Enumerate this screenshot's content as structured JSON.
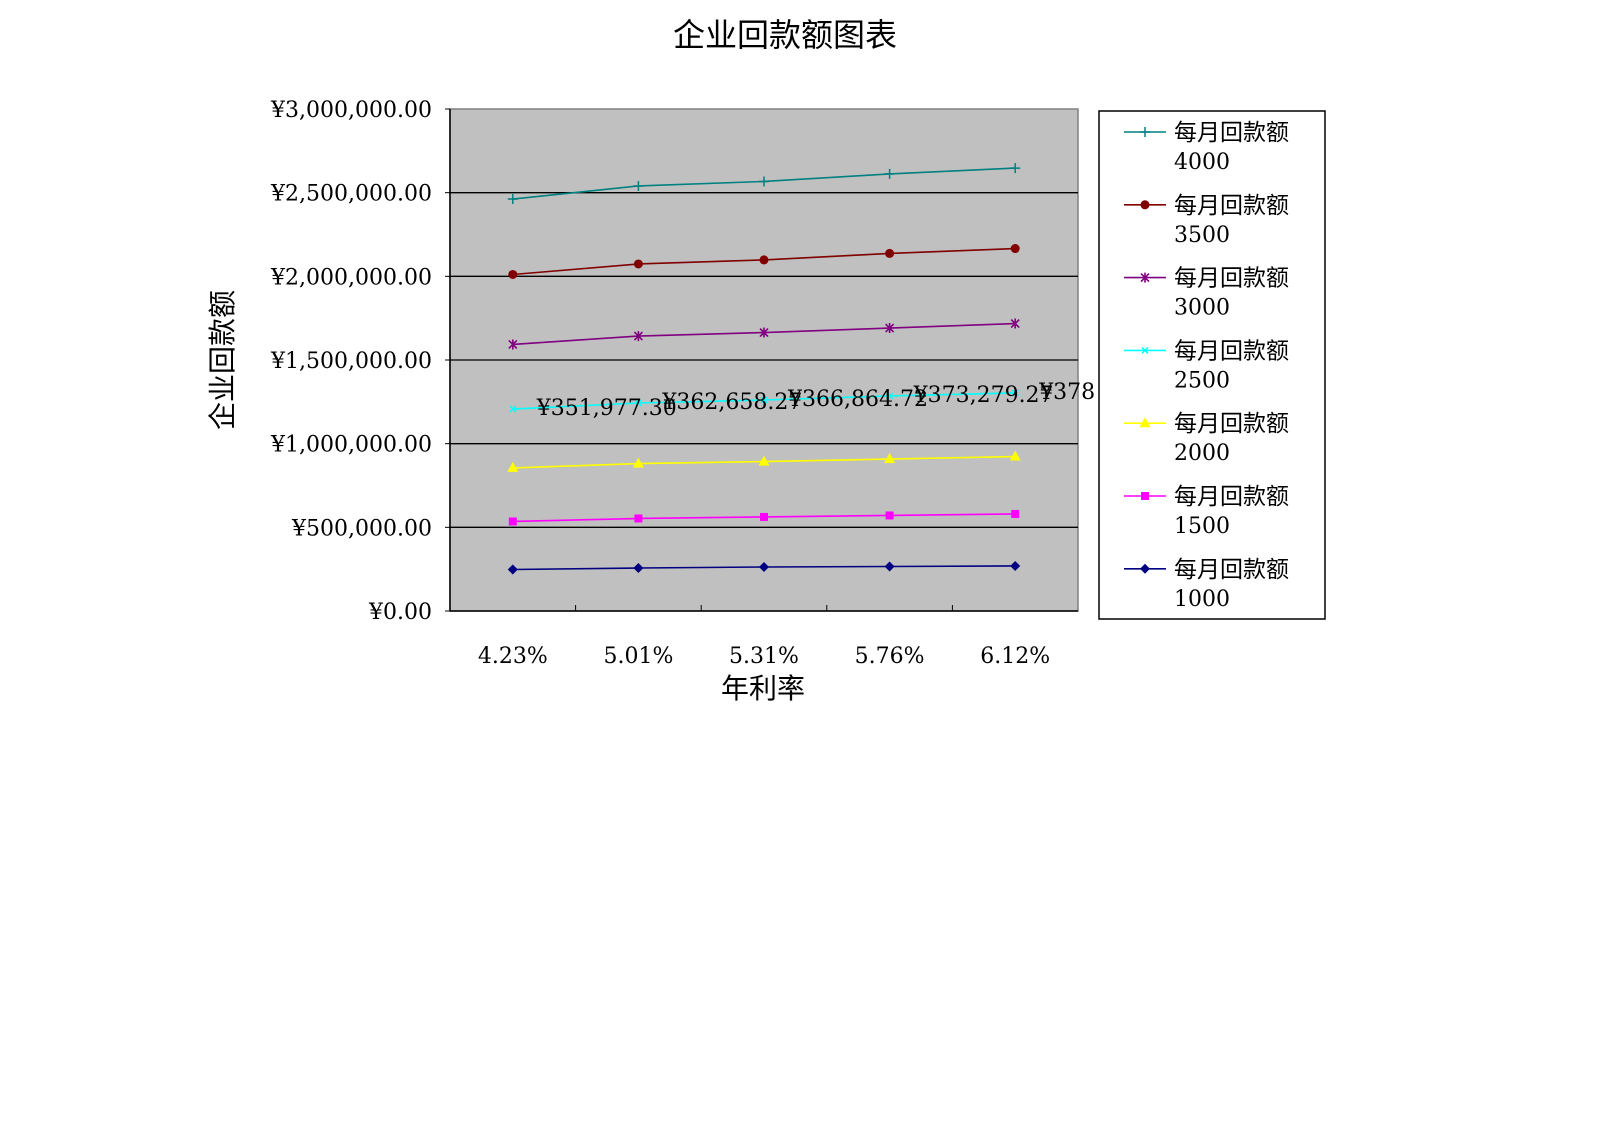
{
  "chart_data": {
    "type": "line",
    "title": "企业回款额图表",
    "xlabel": "年利率",
    "ylabel": "企业回款额",
    "categories": [
      "4.23%",
      "5.01%",
      "5.31%",
      "5.76%",
      "6.12%"
    ],
    "ylim": [
      0,
      3000000
    ],
    "yticks": [
      "¥0.00",
      "¥500,000.00",
      "¥1,000,000.00",
      "¥1,500,000.00",
      "¥2,000,000.00",
      "¥2,500,000.00",
      "¥3,000,000.00"
    ],
    "grid": true,
    "legend_position": "right",
    "plot_background": "#C0C0C0",
    "series": [
      {
        "name": "每月回款额 4000",
        "name_line1": "每月回款额",
        "name_line2": "4000",
        "color": "#008080",
        "marker": "plus",
        "values": [
          2462000,
          2540000,
          2567000,
          2612000,
          2647000
        ]
      },
      {
        "name": "每月回款额 3500",
        "name_line1": "每月回款额",
        "name_line2": "3500",
        "color": "#800000",
        "marker": "circle",
        "values": [
          2011000,
          2074000,
          2098000,
          2137000,
          2166000
        ]
      },
      {
        "name": "每月回款额 3000",
        "name_line1": "每月回款额",
        "name_line2": "3000",
        "color": "#800080",
        "marker": "asterisk",
        "values": [
          1593000,
          1643000,
          1664000,
          1691000,
          1718000
        ]
      },
      {
        "name": "每月回款额 2500",
        "name_line1": "每月回款额",
        "name_line2": "2500",
        "color": "#00FFFF",
        "marker": "x",
        "values": [
          1207000,
          1243000,
          1261000,
          1285000,
          1303000
        ],
        "data_labels": [
          "¥351,977.30",
          "¥362,658.27",
          "¥366,864.72",
          "¥373,279.27",
          "¥378"
        ]
      },
      {
        "name": "每月回款额 2000",
        "name_line1": "每月回款额",
        "name_line2": "2000",
        "color": "#FFFF00",
        "marker": "triangle",
        "values": [
          855000,
          881000,
          893000,
          908000,
          923000
        ]
      },
      {
        "name": "每月回款额 1500",
        "name_line1": "每月回款额",
        "name_line2": "1500",
        "color": "#FF00FF",
        "marker": "square",
        "values": [
          535000,
          553000,
          562000,
          571000,
          580000
        ]
      },
      {
        "name": "每月回款额 1000",
        "name_line1": "每月回款额",
        "name_line2": "1000",
        "color": "#000080",
        "marker": "diamond",
        "values": [
          248000,
          257000,
          263000,
          266000,
          269000
        ]
      }
    ]
  }
}
